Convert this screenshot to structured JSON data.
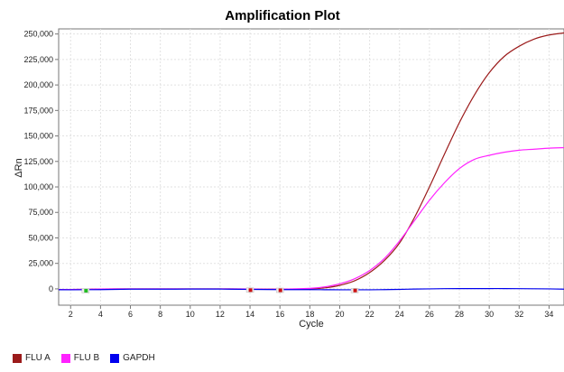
{
  "chart_data": {
    "type": "line",
    "title": "Amplification Plot",
    "xlabel": "Cycle",
    "ylabel": "ΔRn",
    "xlim": [
      1.2,
      35
    ],
    "ylim": [
      -16000,
      255000
    ],
    "x_ticks": [
      2,
      4,
      6,
      8,
      10,
      12,
      14,
      16,
      18,
      20,
      22,
      24,
      26,
      28,
      30,
      32,
      34
    ],
    "y_ticks": [
      0,
      25000,
      50000,
      75000,
      100000,
      125000,
      150000,
      175000,
      200000,
      225000,
      250000
    ],
    "y_tick_labels": [
      "0",
      "25,000",
      "50,000",
      "75,000",
      "100,000",
      "125,000",
      "150,000",
      "175,000",
      "200,000",
      "225,000",
      "250,000"
    ],
    "x_tick_labels": [
      "2",
      "4",
      "6",
      "8",
      "10",
      "12",
      "14",
      "16",
      "18",
      "20",
      "22",
      "24",
      "26",
      "28",
      "30",
      "32",
      "34"
    ],
    "grid": true,
    "legend_position": "bottom-left",
    "x": [
      1,
      2,
      4,
      6,
      8,
      10,
      12,
      14,
      16,
      18,
      19,
      20,
      21,
      22,
      23,
      24,
      25,
      26,
      27,
      28,
      29,
      30,
      31,
      32,
      33,
      34,
      35
    ],
    "series": [
      {
        "name": "FLU A",
        "color": "#9b1b1b",
        "values": [
          -500,
          -600,
          -200,
          0,
          0,
          0,
          0,
          -200,
          -300,
          0,
          1000,
          3500,
          8000,
          16000,
          28000,
          45000,
          70000,
          100000,
          132000,
          163000,
          190000,
          212000,
          228000,
          238000,
          245000,
          249000,
          251000
        ]
      },
      {
        "name": "FLU B",
        "color": "#ff22ff",
        "values": [
          -500,
          -600,
          -200,
          0,
          0,
          0,
          0,
          -200,
          -300,
          500,
          2000,
          5000,
          10000,
          18000,
          30000,
          47000,
          67000,
          87000,
          104000,
          118000,
          127000,
          131000,
          134000,
          136000,
          137000,
          138000,
          138500
        ]
      },
      {
        "name": "GAPDH",
        "color": "#0000ee",
        "values": [
          -800,
          -900,
          -700,
          -300,
          -300,
          -200,
          -200,
          -500,
          -700,
          -700,
          -800,
          -900,
          -900,
          -900,
          -700,
          -500,
          -200,
          0,
          200,
          300,
          300,
          300,
          300,
          200,
          100,
          0,
          -300
        ]
      }
    ],
    "threshold_markers": [
      {
        "x": 3,
        "y": -1800,
        "color": "#22bb22"
      },
      {
        "x": 14,
        "y": -1200,
        "color": "#cc1111"
      },
      {
        "x": 16,
        "y": -1400,
        "color": "#cc1111"
      },
      {
        "x": 21,
        "y": -1600,
        "color": "#cc1111"
      }
    ]
  }
}
